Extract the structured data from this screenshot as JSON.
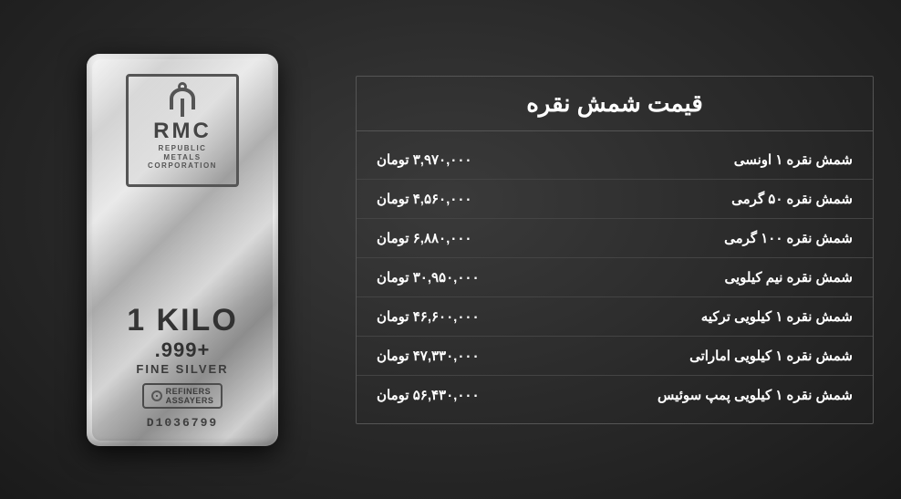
{
  "colors": {
    "page_bg_center": "#3a3a3a",
    "page_bg_edge": "#1a1a1a",
    "border": "#555555",
    "row_border": "#444444",
    "text": "#ffffff",
    "bar_text": "#3a3a3a"
  },
  "typography": {
    "title_fontsize": 26,
    "row_fontsize": 15,
    "bar_kilo_fontsize": 34
  },
  "silver_bar": {
    "brand_initials": "RMC",
    "brand_line1": "REPUBLIC",
    "brand_line2": "METALS",
    "brand_line3": "CORPORATION",
    "weight": "1 KILO",
    "purity": ".999+",
    "fine_label": "FINE SILVER",
    "refiners": "REFINERS",
    "assayers": "ASSAYERS",
    "serial": "D1036799"
  },
  "price_table": {
    "title": "قیمت شمش نقره",
    "currency": "تومان",
    "rows": [
      {
        "label": "شمش نقره ۱ اونسی",
        "price": "۳,۹۷۰,۰۰۰"
      },
      {
        "label": "شمش نقره ۵۰ گرمی",
        "price": "۴,۵۶۰,۰۰۰"
      },
      {
        "label": "شمش نقره ۱۰۰ گرمی",
        "price": "۶,۸۸۰,۰۰۰"
      },
      {
        "label": "شمش نقره نیم کیلویی",
        "price": "۳۰,۹۵۰,۰۰۰"
      },
      {
        "label": "شمش نقره ۱ کیلویی ترکیه",
        "price": "۴۶,۶۰۰,۰۰۰"
      },
      {
        "label": "شمش نقره ۱ کیلویی اماراتی",
        "price": "۴۷,۳۳۰,۰۰۰"
      },
      {
        "label": "شمش نقره ۱ کیلویی پمپ سوئیس",
        "price": "۵۶,۴۳۰,۰۰۰"
      }
    ]
  }
}
